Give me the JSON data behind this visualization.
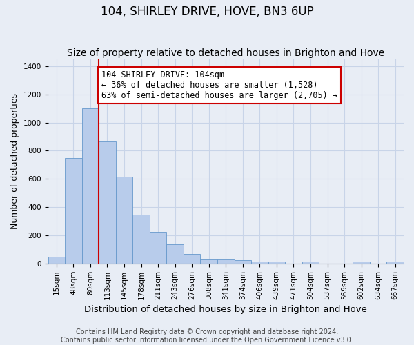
{
  "title": "104, SHIRLEY DRIVE, HOVE, BN3 6UP",
  "subtitle": "Size of property relative to detached houses in Brighton and Hove",
  "xlabel": "Distribution of detached houses by size in Brighton and Hove",
  "ylabel": "Number of detached properties",
  "footer_line1": "Contains HM Land Registry data © Crown copyright and database right 2024.",
  "footer_line2": "Contains public sector information licensed under the Open Government Licence v3.0.",
  "bin_labels": [
    "15sqm",
    "48sqm",
    "80sqm",
    "113sqm",
    "145sqm",
    "178sqm",
    "211sqm",
    "243sqm",
    "276sqm",
    "308sqm",
    "341sqm",
    "374sqm",
    "406sqm",
    "439sqm",
    "471sqm",
    "504sqm",
    "537sqm",
    "569sqm",
    "602sqm",
    "634sqm",
    "667sqm"
  ],
  "bar_values": [
    48,
    750,
    1100,
    865,
    615,
    345,
    225,
    135,
    68,
    30,
    30,
    22,
    13,
    13,
    0,
    12,
    0,
    0,
    12,
    0,
    12
  ],
  "bar_color": "#b8cceb",
  "bar_edgecolor": "#6699cc",
  "grid_color": "#c8d4e8",
  "background_color": "#e8edf5",
  "annotation_line1": "104 SHIRLEY DRIVE: 104sqm",
  "annotation_line2": "← 36% of detached houses are smaller (1,528)",
  "annotation_line3": "63% of semi-detached houses are larger (2,705) →",
  "vline_bar_index": 2,
  "vline_color": "#cc0000",
  "ylim": [
    0,
    1450
  ],
  "annotation_box_color": "#ffffff",
  "annotation_box_edge": "#cc0000",
  "title_fontsize": 12,
  "subtitle_fontsize": 10,
  "annotation_fontsize": 8.5,
  "tick_fontsize": 7.5,
  "ylabel_fontsize": 9,
  "xlabel_fontsize": 9.5,
  "footer_fontsize": 7
}
